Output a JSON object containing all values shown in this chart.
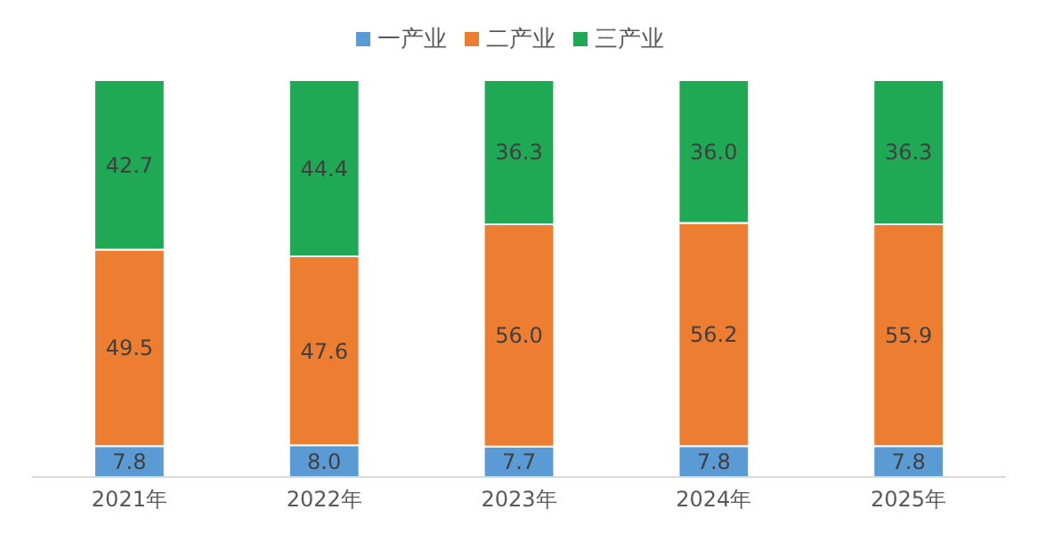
{
  "chart_data": {
    "type": "bar",
    "stacked": true,
    "categories": [
      "2021年",
      "2022年",
      "2023年",
      "2024年",
      "2025年"
    ],
    "series": [
      {
        "name": "一产业",
        "color": "#5b9bd5",
        "values": [
          7.8,
          8.0,
          7.7,
          7.8,
          7.8
        ],
        "value_labels": [
          "7.8",
          "8.0",
          "7.7",
          "7.8",
          "7.8"
        ]
      },
      {
        "name": "二产业",
        "color": "#ed7d31",
        "values": [
          49.5,
          47.6,
          56.0,
          56.2,
          55.9
        ],
        "value_labels": [
          "49.5",
          "47.6",
          "56.0",
          "56.2",
          "55.9"
        ]
      },
      {
        "name": "三产业",
        "color": "#1fa955",
        "values": [
          42.7,
          44.4,
          36.3,
          36.0,
          36.3
        ],
        "value_labels": [
          "42.7",
          "44.4",
          "36.3",
          "36.0",
          "36.3"
        ]
      }
    ],
    "legend": "top",
    "grid": false
  }
}
